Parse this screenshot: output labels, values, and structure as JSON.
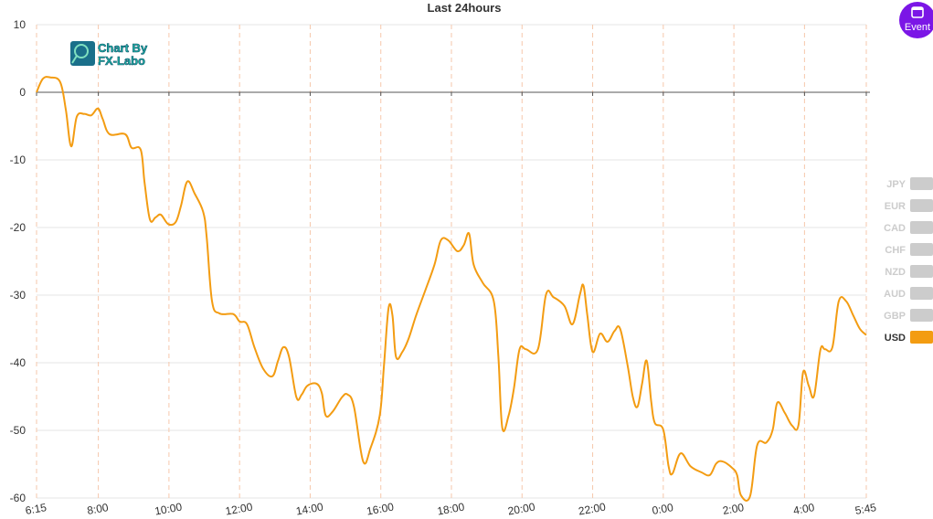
{
  "chart_data": {
    "type": "line",
    "title": "Last 24hours",
    "watermark": [
      "Chart By",
      "FX-Labo"
    ],
    "x": [
      6.25,
      6.43,
      6.64,
      6.92,
      7.08,
      7.23,
      7.39,
      7.6,
      7.8,
      7.99,
      8.12,
      8.32,
      8.76,
      8.94,
      9.2,
      9.31,
      9.46,
      9.62,
      9.77,
      9.98,
      10.19,
      10.34,
      10.52,
      10.73,
      10.97,
      11.07,
      11.22,
      11.43,
      11.82,
      12,
      12.21,
      12.42,
      12.67,
      12.93,
      13.09,
      13.24,
      13.4,
      13.61,
      13.76,
      13.92,
      14.18,
      14.33,
      14.44,
      14.64,
      14.9,
      15.06,
      15.24,
      15.5,
      15.71,
      15.97,
      16.09,
      16.22,
      16.33,
      16.43,
      16.61,
      16.79,
      17,
      17.26,
      17.52,
      17.7,
      17.91,
      18.17,
      18.35,
      18.5,
      18.63,
      18.89,
      19.2,
      19.33,
      19.44,
      19.62,
      19.77,
      19.93,
      20.11,
      20.45,
      20.68,
      20.89,
      21.2,
      21.43,
      21.64,
      21.74,
      21.85,
      22,
      22.21,
      22.42,
      22.62,
      22.78,
      22.99,
      23.14,
      23.27,
      23.4,
      23.53,
      23.66,
      23.76,
      24,
      24.15,
      24.26,
      24.49,
      24.77,
      25.08,
      25.32,
      25.5,
      25.68,
      25.94,
      26.09,
      26.2,
      26.46,
      26.66,
      26.92,
      27.1,
      27.23,
      27.44,
      27.65,
      27.83,
      27.96,
      28.12,
      28.27,
      28.45,
      28.58,
      28.79,
      28.97,
      29.18,
      29.38,
      29.57,
      29.75
    ],
    "series": [
      {
        "name": "USD",
        "color": "#f39c12",
        "values": [
          0,
          2,
          2.2,
          1.5,
          -2.6,
          -8,
          -3.6,
          -3.2,
          -3.4,
          -2.4,
          -3.9,
          -6.2,
          -6.2,
          -8.2,
          -8.5,
          -13.4,
          -18.8,
          -18.5,
          -18.1,
          -19.5,
          -19.2,
          -16.8,
          -13.2,
          -15,
          -17.7,
          -21.5,
          -30.9,
          -32.7,
          -32.8,
          -33.9,
          -34.3,
          -37.7,
          -40.9,
          -42,
          -39.7,
          -37.7,
          -39.1,
          -45.1,
          -44.7,
          -43.4,
          -43.1,
          -44.5,
          -47.8,
          -47.2,
          -45.1,
          -44.7,
          -46.5,
          -54.6,
          -52.6,
          -47.8,
          -40.4,
          -31.9,
          -33,
          -39.1,
          -38.4,
          -36.4,
          -33,
          -29.3,
          -25.5,
          -21.9,
          -21.9,
          -23.5,
          -22.6,
          -20.9,
          -25.5,
          -28.2,
          -30.9,
          -39.1,
          -49.6,
          -47.8,
          -43.8,
          -38,
          -38,
          -38,
          -29.9,
          -30.3,
          -31.6,
          -34.3,
          -29.9,
          -28.6,
          -33,
          -38.4,
          -35.7,
          -36.9,
          -35.3,
          -35,
          -40.4,
          -45.1,
          -46.5,
          -43.1,
          -39.7,
          -45.8,
          -48.9,
          -49.9,
          -55.3,
          -56.4,
          -53.4,
          -55.3,
          -56.2,
          -56.6,
          -54.9,
          -54.6,
          -55.5,
          -56.6,
          -59.6,
          -59.7,
          -52.2,
          -51.8,
          -49.9,
          -45.9,
          -47.4,
          -49.3,
          -49.2,
          -41.4,
          -43.4,
          -44.9,
          -38.1,
          -38,
          -37.7,
          -30.9,
          -30.9,
          -33,
          -35,
          -35.9
        ]
      }
    ],
    "inactive_series": [
      "JPY",
      "EUR",
      "CAD",
      "CHF",
      "NZD",
      "AUD",
      "GBP"
    ],
    "inactive_color": "#cccccc",
    "xlim": [
      6.25,
      29.75
    ],
    "xticks": [
      {
        "value": 6.25,
        "label": "6:15"
      },
      {
        "value": 8,
        "label": "8:00"
      },
      {
        "value": 10,
        "label": "10:00"
      },
      {
        "value": 12,
        "label": "12:00"
      },
      {
        "value": 14,
        "label": "14:00"
      },
      {
        "value": 16,
        "label": "16:00"
      },
      {
        "value": 18,
        "label": "18:00"
      },
      {
        "value": 20,
        "label": "20:00"
      },
      {
        "value": 22,
        "label": "22:00"
      },
      {
        "value": 24,
        "label": "0:00"
      },
      {
        "value": 26,
        "label": "2:00"
      },
      {
        "value": 28,
        "label": "4:00"
      },
      {
        "value": 29.75,
        "label": "5:45"
      }
    ],
    "ylim": [
      -60,
      10
    ],
    "yticks": [
      -60,
      -50,
      -40,
      -30,
      -20,
      -10,
      0,
      10
    ],
    "grid": true
  },
  "event_button": "Event"
}
